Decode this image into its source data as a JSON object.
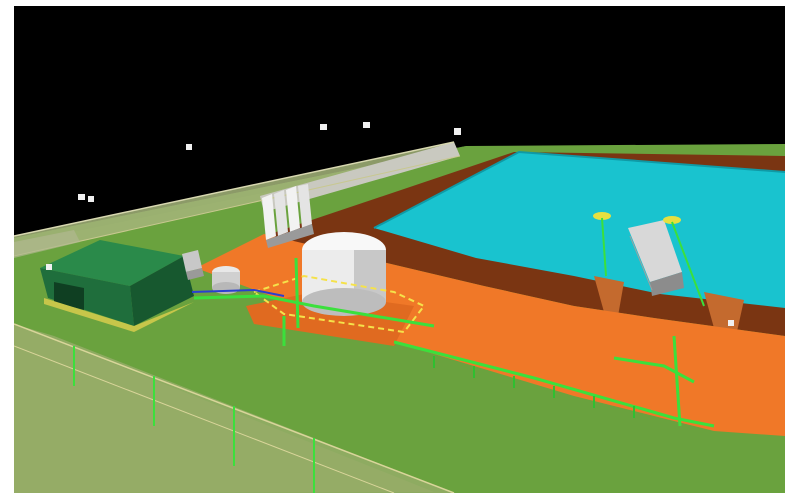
{
  "scene": {
    "colors": {
      "sky": "#000000",
      "ground": "#6aa23e",
      "water": "#19c3cf",
      "pad_orange": "#f07828",
      "berm_brown": "#7a3512",
      "building_green": "#1f6e3c",
      "pipe_green": "#3be03c",
      "tank_white": "#f1f1f1",
      "fence": "#c8c8a0"
    },
    "icons": [
      "marker-icon",
      "storage-tank-icon",
      "building-icon",
      "barge-icon",
      "fence-icon",
      "pipe-icon"
    ]
  }
}
